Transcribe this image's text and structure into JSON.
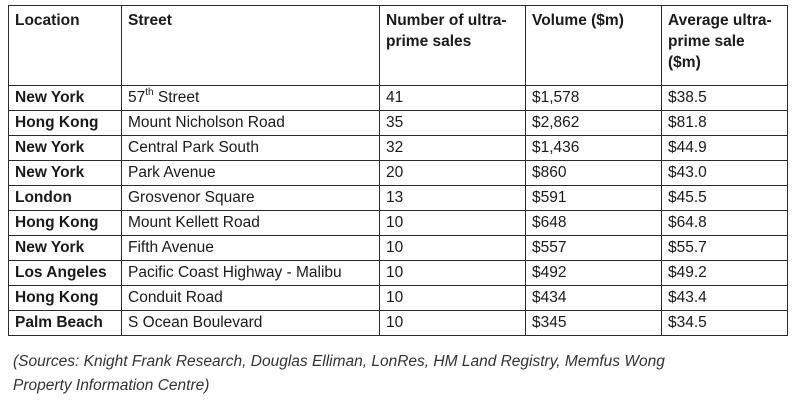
{
  "table": {
    "headers": [
      "Location",
      "Street",
      "Number of ultra-prime sales",
      "Volume ($m)",
      "Average ultra-prime sale ($m)"
    ],
    "rows": [
      {
        "location": "New York",
        "street": "57",
        "street_sup": "th",
        "street_rest": " Street",
        "sales": "41",
        "volume": "$1,578",
        "average": "$38.5"
      },
      {
        "location": "Hong Kong",
        "street": "Mount Nicholson Road",
        "sales": "35",
        "volume": "$2,862",
        "average": "$81.8"
      },
      {
        "location": "New York",
        "street": "Central Park South",
        "sales": "32",
        "volume": "$1,436",
        "average": "$44.9"
      },
      {
        "location": "New York",
        "street": "Park Avenue",
        "sales": "20",
        "volume": "$860",
        "average": "$43.0"
      },
      {
        "location": "London",
        "street": "Grosvenor Square",
        "sales": "13",
        "volume": "$591",
        "average": "$45.5"
      },
      {
        "location": "Hong Kong",
        "street": "Mount Kellett Road",
        "sales": "10",
        "volume": "$648",
        "average": "$64.8"
      },
      {
        "location": "New York",
        "street": "Fifth Avenue",
        "sales": "10",
        "volume": "$557",
        "average": "$55.7"
      },
      {
        "location": "Los Angeles",
        "street": "Pacific Coast Highway - Malibu",
        "sales": "10",
        "volume": "$492",
        "average": "$49.2"
      },
      {
        "location": "Hong Kong",
        "street": "Conduit Road",
        "sales": "10",
        "volume": "$434",
        "average": "$43.4"
      },
      {
        "location": "Palm Beach",
        "street": "S Ocean Boulevard",
        "sales": "10",
        "volume": "$345",
        "average": "$34.5"
      }
    ]
  },
  "source_note": "(Sources: Knight Frank Research, Douglas Elliman, LonRes, HM Land Registry, Memfus Wong Property Information Centre)"
}
